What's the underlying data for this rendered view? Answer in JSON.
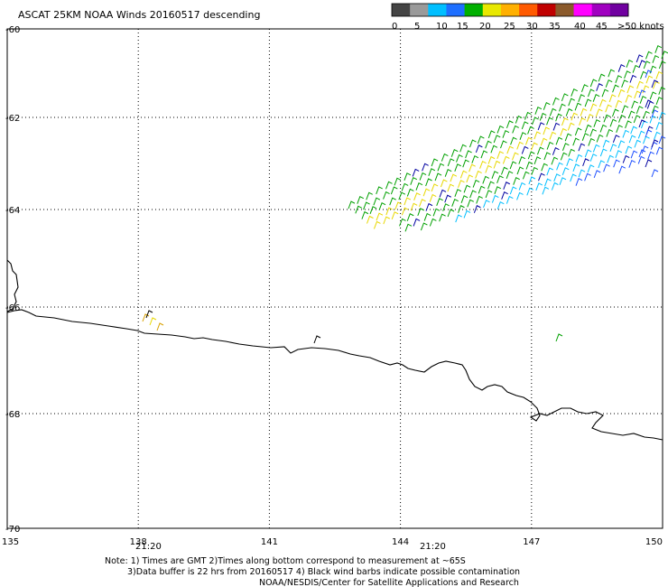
{
  "title": "ASCAT 25KM NOAA Winds 20160517 descending",
  "legend": {
    "labels": [
      "0",
      "5",
      "10",
      "15",
      "20",
      "25",
      "30",
      "35",
      "40",
      "45",
      ">50 knots"
    ],
    "colors": [
      "#444444",
      "#9a9a9a",
      "#00bfff",
      "#1e6fff",
      "#00b000",
      "#e8e800",
      "#ffb000",
      "#ff5a00",
      "#c00000",
      "#8b5a2b",
      "#ff00ff",
      "#a000c0",
      "#7000a0"
    ]
  },
  "map": {
    "lon_range": [
      135,
      150
    ],
    "lat_range": [
      -70,
      -60
    ],
    "lon_ticks": [
      "135",
      "138",
      "141",
      "144",
      "147",
      "150"
    ],
    "lat_ticks": [
      "-60",
      "-62",
      "-64",
      "-66",
      "-68",
      "-70"
    ],
    "time_labels": [
      "21:20",
      "21:20"
    ],
    "time_color": "#800080",
    "coast_color": "#000000",
    "grid": "dotted"
  },
  "notes": [
    "Note: 1) Times are GMT 2)Times along bottom correspond to measurement at ~65S",
    "3)Data buffer is 22 hrs from 20160517 4) Black wind barbs indicate possible contamination",
    "NOAA/NESDIS/Center for Satellite Applications and Research"
  ]
}
